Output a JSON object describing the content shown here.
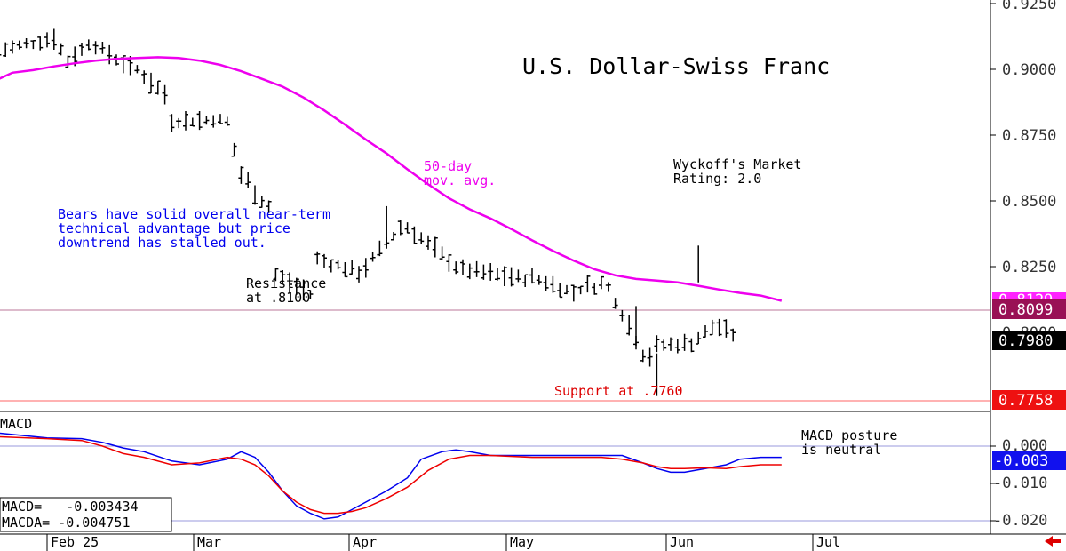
{
  "chart_data": [
    {
      "type": "ohlc",
      "title": "U.S. Dollar-Swiss Franc",
      "ylim": [
        0.7758,
        0.925
      ],
      "y_ticks": [
        "0.9250",
        "0.9000",
        "0.8750",
        "0.8500",
        "0.8250"
      ],
      "x_month_labels": [
        {
          "label": "Feb 25",
          "day": 0
        },
        {
          "label": "Mar",
          "day": 4
        },
        {
          "label": "Apr",
          "day": 27
        },
        {
          "label": "May",
          "day": 49
        },
        {
          "label": "Jun",
          "day": 72
        },
        {
          "label": "Jul",
          "day": 92
        }
      ],
      "series": [
        {
          "name": "50-day mov. avg.",
          "color": "#ee00ee",
          "points": [
            [
              -7,
              0.8963
            ],
            [
              -5,
              0.8987
            ],
            [
              -2,
              0.8997
            ],
            [
              1,
              0.9011
            ],
            [
              4,
              0.9023
            ],
            [
              7,
              0.9033
            ],
            [
              10,
              0.904
            ],
            [
              13,
              0.9043
            ],
            [
              16,
              0.9046
            ],
            [
              19,
              0.9043
            ],
            [
              22,
              0.9033
            ],
            [
              25,
              0.9017
            ],
            [
              28,
              0.8993
            ],
            [
              31,
              0.8964
            ],
            [
              34,
              0.8934
            ],
            [
              37,
              0.8893
            ],
            [
              40,
              0.8844
            ],
            [
              43,
              0.879
            ],
            [
              46,
              0.8733
            ],
            [
              49,
              0.868
            ],
            [
              52,
              0.862
            ],
            [
              55,
              0.8563
            ],
            [
              58,
              0.851
            ],
            [
              61,
              0.8468
            ],
            [
              64,
              0.8433
            ],
            [
              67,
              0.8393
            ],
            [
              70,
              0.835
            ],
            [
              73,
              0.831
            ],
            [
              76,
              0.8273
            ],
            [
              79,
              0.824
            ],
            [
              82,
              0.8217
            ],
            [
              85,
              0.8203
            ],
            [
              88,
              0.8197
            ],
            [
              91,
              0.819
            ],
            [
              94,
              0.8177
            ],
            [
              97,
              0.8163
            ],
            [
              100,
              0.815
            ],
            [
              103,
              0.814
            ],
            [
              106,
              0.812
            ]
          ]
        }
      ],
      "ohlc_segments": [
        {
          "days": [
            -7,
            1
          ],
          "start": 0.907,
          "end": 0.912,
          "amp": 0.004
        },
        {
          "days": [
            1,
            3
          ],
          "start": 0.912,
          "end": 0.903,
          "amp": 0.003
        },
        {
          "days": [
            3,
            7
          ],
          "start": 0.903,
          "end": 0.912,
          "amp": 0.002
        },
        {
          "days": [
            7,
            13
          ],
          "start": 0.909,
          "end": 0.899,
          "amp": 0.003
        },
        {
          "days": [
            13,
            18
          ],
          "start": 0.9,
          "end": 0.888,
          "amp": 0.003
        },
        {
          "days": [
            18,
            26
          ],
          "start": 0.88,
          "end": 0.881,
          "amp": 0.002
        },
        {
          "days": [
            26,
            28
          ],
          "start": 0.88,
          "end": 0.859,
          "amp": 0.003
        },
        {
          "days": [
            28,
            33
          ],
          "start": 0.86,
          "end": 0.845,
          "amp": 0.007
        },
        {
          "days": [
            33,
            39
          ],
          "start": 0.822,
          "end": 0.813,
          "amp": 0.004
        },
        {
          "days": [
            39,
            46
          ],
          "start": 0.828,
          "end": 0.822,
          "amp": 0.004
        },
        {
          "days": [
            46,
            52
          ],
          "start": 0.825,
          "end": 0.843,
          "amp": 0.004
        },
        {
          "days": [
            52,
            60
          ],
          "start": 0.84,
          "end": 0.823,
          "amp": 0.004
        },
        {
          "days": [
            60,
            70
          ],
          "start": 0.824,
          "end": 0.82,
          "amp": 0.003
        },
        {
          "days": [
            70,
            77
          ],
          "start": 0.821,
          "end": 0.814,
          "amp": 0.003
        },
        {
          "days": [
            77,
            81
          ],
          "start": 0.817,
          "end": 0.819,
          "amp": 0.005
        },
        {
          "days": [
            81,
            86
          ],
          "start": 0.817,
          "end": 0.793,
          "amp": 0.004
        },
        {
          "days": [
            86,
            88
          ],
          "start": 0.792,
          "end": 0.79,
          "amp": 0.004
        },
        {
          "days": [
            88,
            94
          ],
          "start": 0.795,
          "end": 0.796,
          "amp": 0.003
        },
        {
          "days": [
            94,
            97
          ],
          "start": 0.798,
          "end": 0.804,
          "amp": 0.003
        },
        {
          "days": [
            97,
            100
          ],
          "start": 0.802,
          "end": 0.798,
          "amp": 0.003
        }
      ],
      "last_price": 0.798
    },
    {
      "type": "line",
      "title": "MACD",
      "ylim": [
        -0.022,
        0.003
      ],
      "y_ticks": [
        "0.000",
        "-0.010",
        "-0.020"
      ],
      "series": [
        {
          "name": "MACD",
          "color": "#0000ee",
          "points": [
            [
              -7,
              0.0035
            ],
            [
              0,
              0.0022
            ],
            [
              5,
              0.002
            ],
            [
              8,
              0.001
            ],
            [
              11,
              -0.0005
            ],
            [
              14,
              -0.0015
            ],
            [
              18,
              -0.004
            ],
            [
              22,
              -0.005
            ],
            [
              26,
              -0.0035
            ],
            [
              28,
              -0.0015
            ],
            [
              30,
              -0.003
            ],
            [
              32,
              -0.007
            ],
            [
              34,
              -0.012
            ],
            [
              36,
              -0.016
            ],
            [
              38,
              -0.018
            ],
            [
              40,
              -0.0195
            ],
            [
              42,
              -0.019
            ],
            [
              44,
              -0.017
            ],
            [
              46,
              -0.015
            ],
            [
              49,
              -0.012
            ],
            [
              52,
              -0.0085
            ],
            [
              54,
              -0.0035
            ],
            [
              57,
              -0.0015
            ],
            [
              59,
              -0.001
            ],
            [
              61,
              -0.0015
            ],
            [
              64,
              -0.0025
            ],
            [
              70,
              -0.0025
            ],
            [
              75,
              -0.0025
            ],
            [
              80,
              -0.0025
            ],
            [
              83,
              -0.0025
            ],
            [
              86,
              -0.0045
            ],
            [
              88,
              -0.006
            ],
            [
              90,
              -0.007
            ],
            [
              92,
              -0.007
            ],
            [
              95,
              -0.006
            ],
            [
              98,
              -0.005
            ],
            [
              100,
              -0.0035
            ],
            [
              103,
              -0.003
            ],
            [
              106,
              -0.003
            ]
          ]
        },
        {
          "name": "MACDA",
          "color": "#ee0000",
          "points": [
            [
              -7,
              0.0025
            ],
            [
              0,
              0.002
            ],
            [
              5,
              0.0015
            ],
            [
              8,
              0.0
            ],
            [
              11,
              -0.002
            ],
            [
              14,
              -0.003
            ],
            [
              18,
              -0.005
            ],
            [
              22,
              -0.0045
            ],
            [
              26,
              -0.003
            ],
            [
              28,
              -0.0035
            ],
            [
              30,
              -0.005
            ],
            [
              32,
              -0.008
            ],
            [
              34,
              -0.012
            ],
            [
              36,
              -0.015
            ],
            [
              38,
              -0.017
            ],
            [
              40,
              -0.018
            ],
            [
              42,
              -0.018
            ],
            [
              44,
              -0.0175
            ],
            [
              46,
              -0.0165
            ],
            [
              49,
              -0.014
            ],
            [
              52,
              -0.011
            ],
            [
              55,
              -0.0065
            ],
            [
              58,
              -0.0035
            ],
            [
              61,
              -0.0025
            ],
            [
              64,
              -0.0025
            ],
            [
              70,
              -0.003
            ],
            [
              75,
              -0.003
            ],
            [
              80,
              -0.003
            ],
            [
              83,
              -0.0035
            ],
            [
              86,
              -0.0045
            ],
            [
              88,
              -0.0055
            ],
            [
              90,
              -0.006
            ],
            [
              92,
              -0.006
            ],
            [
              95,
              -0.0058
            ],
            [
              98,
              -0.006
            ],
            [
              100,
              -0.0055
            ],
            [
              103,
              -0.005
            ],
            [
              106,
              -0.005
            ]
          ]
        }
      ],
      "reference_lines": [
        0.0,
        -0.02
      ]
    }
  ],
  "chart_title": "U.S. Dollar-Swiss Franc",
  "annotations": {
    "ma_label_line1": "50-day",
    "ma_label_line2": "mov. avg.",
    "rating_line1": "Wyckoff's Market",
    "rating_line2": "Rating: 2.0",
    "bears_line1": "Bears have solid overall near-term",
    "bears_line2": "technical advantage but price",
    "bears_line3": "downtrend has stalled out.",
    "resistance_line1": "Resistance",
    "resistance_line2": "at .8100",
    "support": "Support at .7760",
    "macd_title": "MACD",
    "macd_posture_line1": "MACD posture",
    "macd_posture_line2": "is neutral",
    "macd_value": "MACD=   -0.003434",
    "macda_value": "MACDA= -0.004751"
  },
  "price_axis": {
    "ticks": [
      "0.9250",
      "0.9000",
      "0.8750",
      "0.8500",
      "0.8250"
    ],
    "tag_magenta": "0.8129",
    "tag_resistance": "0.8099",
    "tag_last": "0.7980",
    "tag_support": "0.7758",
    "hidden_tick": "0.8000"
  },
  "macd_axis": {
    "ticks": [
      "0.000",
      "-0.010",
      "-0.020"
    ],
    "tag_macd": "-0.003"
  },
  "x_axis": {
    "labels": [
      "Feb 25",
      "Mar",
      "Apr",
      "May",
      "Jun",
      "Jul"
    ]
  },
  "levels": {
    "resistance": 0.8099,
    "support": 0.7758
  },
  "colors": {
    "moving_average": "#ee00ee",
    "macd": "#0000ee",
    "macda": "#ee0000",
    "bears_text": "#0000ee",
    "support_text": "#dd0000",
    "resistance_line": "#bb7799",
    "support_line": "#ff6666",
    "tag_magenta": "#ff22ff",
    "tag_resistance": "#991155",
    "tag_last": "#000000",
    "tag_support": "#ee1111",
    "tag_macd": "#1111ee",
    "scroll_arrow": "#dd0000"
  },
  "icons": {
    "scroll": "left-arrow-icon"
  }
}
